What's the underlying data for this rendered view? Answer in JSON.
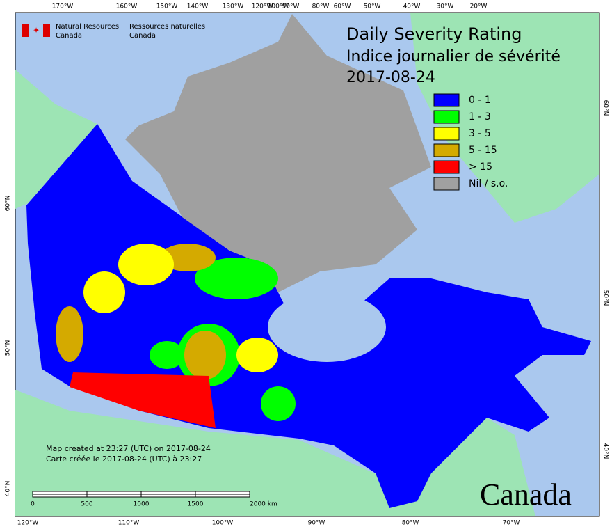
{
  "header": {
    "title": "Daily Severity Rating",
    "subtitle": "Indice journalier de sévérité",
    "date": "2017-08-24"
  },
  "agency": {
    "en": [
      "Natural Resources",
      "Canada"
    ],
    "fr": [
      "Ressources naturelles",
      "Canada"
    ]
  },
  "legend": [
    {
      "label": "0 - 1",
      "color": "#0000ff"
    },
    {
      "label": "1 - 3",
      "color": "#00ff00"
    },
    {
      "label": "3 - 5",
      "color": "#ffff00"
    },
    {
      "label": "5 - 15",
      "color": "#d4aa00"
    },
    {
      "label": "> 15",
      "color": "#ff0000"
    },
    {
      "label": "Nil / s.o.",
      "color": "#a0a0a0"
    }
  ],
  "graticule": {
    "top": [
      "170°W",
      "160°W",
      "150°W",
      "140°W",
      "130°W",
      "120°W",
      "100°W",
      "90°W",
      "80°W",
      "60°W",
      "50°W",
      "40°W",
      "30°W",
      "20°W"
    ],
    "bottom": [
      "120°W",
      "110°W",
      "100°W",
      "90°W",
      "80°W",
      "70°W"
    ],
    "left": [
      "60°N",
      "50°N",
      "40°N"
    ],
    "right": [
      "60°N",
      "50°N",
      "40°N"
    ]
  },
  "scale": [
    "0",
    "500",
    "1000",
    "1500",
    "2000 km"
  ],
  "notes": [
    "Map created at 23:27 (UTC) on 2017-08-24",
    "Carte créée le 2017-08-24 (UTC) à 23:27"
  ],
  "wordmark": "Canada"
}
